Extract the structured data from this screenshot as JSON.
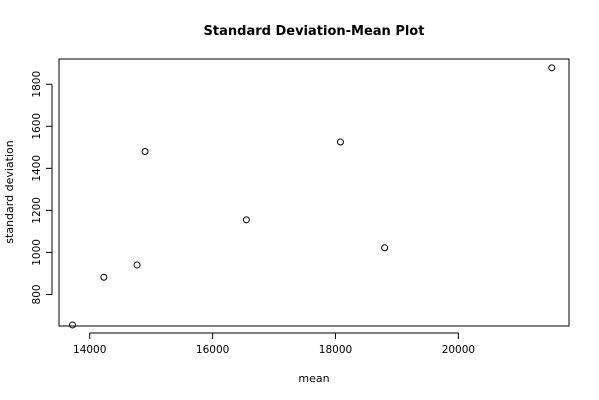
{
  "chart_data": {
    "type": "scatter",
    "title": "Standard Deviation-Mean Plot",
    "xlabel": "mean",
    "ylabel": "standard deviation",
    "xlim": [
      13500,
      21800
    ],
    "ylim": [
      650,
      1920
    ],
    "x_ticks": [
      14000,
      16000,
      18000,
      20000
    ],
    "y_ticks": [
      800,
      1000,
      1200,
      1400,
      1600,
      1800
    ],
    "x_tick_labels": [
      "14000",
      "16000",
      "18000",
      "20000"
    ],
    "y_tick_labels": [
      "800",
      "1000",
      "1200",
      "1400",
      "1600",
      "1800"
    ],
    "points": [
      {
        "x": 13720,
        "y": 655
      },
      {
        "x": 14230,
        "y": 882
      },
      {
        "x": 14770,
        "y": 940
      },
      {
        "x": 14900,
        "y": 1480
      },
      {
        "x": 16550,
        "y": 1155
      },
      {
        "x": 18080,
        "y": 1525
      },
      {
        "x": 18800,
        "y": 1022
      },
      {
        "x": 21520,
        "y": 1878
      }
    ],
    "marker": "open-circle",
    "grid": false,
    "legend": "none"
  }
}
